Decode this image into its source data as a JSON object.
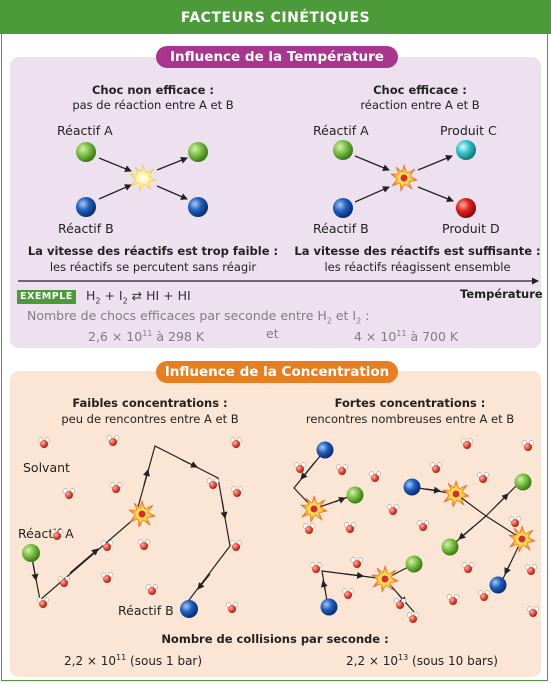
{
  "header": {
    "title": "FACTEURS CINÉTIQUES"
  },
  "temperature": {
    "title": "Influence de la Température",
    "left": {
      "heading": "Choc non efficace :",
      "subheading": "pas de réaction entre A et B",
      "reactant_a": "Réactif A",
      "reactant_b": "Réactif B",
      "caption_bold": "La vitesse des réactifs est trop faible :",
      "caption": "les réactifs se percutent sans réagir"
    },
    "right": {
      "heading": "Choc efficace :",
      "subheading": "réaction entre A et B",
      "reactant_a": "Réactif A",
      "reactant_b": "Réactif B",
      "product_c": "Produit C",
      "product_d": "Produit D",
      "caption_bold": "La vitesse des réactifs est suffisante :",
      "caption": "les réactifs réagissent ensemble"
    },
    "axis_label": "Température",
    "example_tag": "EXEMPLE",
    "reaction_parts": [
      "H",
      "2",
      " + I",
      "2",
      " ⇄ HI + HI"
    ],
    "effective_collisions": {
      "text_parts": [
        "Nombre de chocs efficaces par seconde entre H",
        "2",
        " et I",
        "2",
        " :"
      ],
      "low": {
        "mantissa": "2,6 × 10",
        "exponent": "11",
        "suffix": " à 298 K"
      },
      "connector": "et",
      "high": {
        "mantissa": "4 × 10",
        "exponent": "11",
        "suffix": " à 700 K"
      }
    }
  },
  "concentration": {
    "title": "Influence de la Concentration",
    "left": {
      "heading": "Faibles concentrations :",
      "subheading": "peu de rencontres entre A et B",
      "solvent": "Solvant",
      "reactant_a": "Réactif A",
      "reactant_b": "Réactif B"
    },
    "right": {
      "heading": "Fortes concentrations :",
      "subheading": "rencontres nombreuses entre A et B"
    },
    "collisions_heading": "Nombre de collisions par seconde :",
    "low": {
      "mantissa": "2,2 × 10",
      "exponent": "11",
      "suffix": " (sous 1 bar)"
    },
    "high": {
      "mantissa": "2,2 × 10",
      "exponent": "13",
      "suffix": " (sous 10 bars)"
    }
  },
  "colors": {
    "green_theme": "#4c9a3a",
    "purple_theme": "#a8368e",
    "orange_theme": "#e67e22",
    "reactant_a": "#7bc043",
    "reactant_b": "#1f5fbf",
    "product_c": "#35c0c9",
    "product_d": "#e02020",
    "solvent_oxygen": "#e04a3a"
  }
}
